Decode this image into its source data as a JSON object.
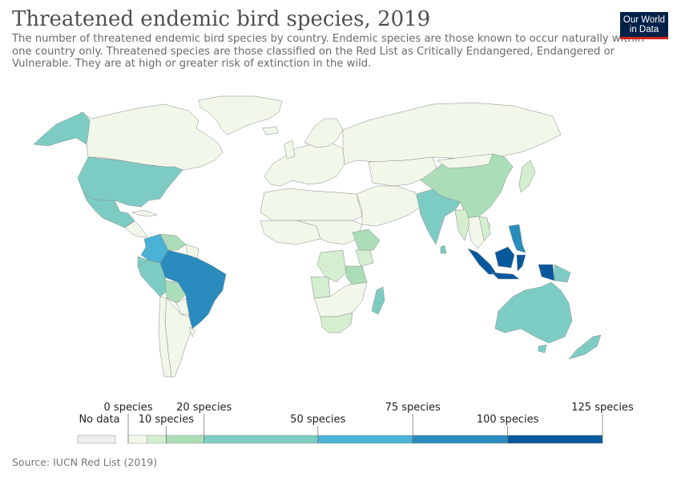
{
  "header": {
    "title": "Threatened endemic bird species, 2019",
    "subtitle": "The number of threatened endemic bird species by country. Endemic species are those known to occur naturally within one country only. Threatened species are those classified on the Red List as Critically Endangered, Endangered or Vulnerable. They are at high or greater risk of extinction in the wild."
  },
  "logo": {
    "line1": "Our World",
    "line2": "in Data",
    "bg": "#002147",
    "accent": "#ce261e"
  },
  "legend": {
    "no_data_label": "No data",
    "no_data_color": "#eeeeee",
    "bins": [
      {
        "from": 0,
        "to": 5,
        "color": "#f1f8ea"
      },
      {
        "from": 5,
        "to": 10,
        "color": "#d4eecf"
      },
      {
        "from": 10,
        "to": 20,
        "color": "#abdeb8"
      },
      {
        "from": 20,
        "to": 50,
        "color": "#7dccc4"
      },
      {
        "from": 50,
        "to": 75,
        "color": "#4ab2d4"
      },
      {
        "from": 75,
        "to": 100,
        "color": "#2a8cbe"
      },
      {
        "from": 100,
        "to": 125,
        "color": "#08589e"
      }
    ],
    "ticks": [
      {
        "value": 0,
        "label": "0 species",
        "row": "upper"
      },
      {
        "value": 10,
        "label": "10 species",
        "row": "lower"
      },
      {
        "value": 20,
        "label": "20 species",
        "row": "upper"
      },
      {
        "value": 50,
        "label": "50 species",
        "row": "lower"
      },
      {
        "value": 75,
        "label": "75 species",
        "row": "upper"
      },
      {
        "value": 100,
        "label": "100 species",
        "row": "lower"
      },
      {
        "value": 125,
        "label": "125 species",
        "row": "upper"
      }
    ]
  },
  "regions": [
    {
      "id": "greenland",
      "color": "#f1f8ea"
    },
    {
      "id": "canada",
      "color": "#f1f8ea"
    },
    {
      "id": "alaska",
      "color": "#7dccc4"
    },
    {
      "id": "united-states",
      "color": "#7dccc4"
    },
    {
      "id": "mexico",
      "color": "#7dccc4"
    },
    {
      "id": "central-america",
      "color": "#f1f8ea"
    },
    {
      "id": "cuba",
      "color": "#f1f8ea"
    },
    {
      "id": "colombia",
      "color": "#4ab2d4"
    },
    {
      "id": "venezuela",
      "color": "#abdeb8"
    },
    {
      "id": "guianas",
      "color": "#f1f8ea"
    },
    {
      "id": "ecuador",
      "color": "#7dccc4"
    },
    {
      "id": "peru",
      "color": "#7dccc4"
    },
    {
      "id": "bolivia",
      "color": "#abdeb8"
    },
    {
      "id": "brazil",
      "color": "#2a8cbe"
    },
    {
      "id": "paraguay",
      "color": "#f1f8ea"
    },
    {
      "id": "chile",
      "color": "#f1f8ea"
    },
    {
      "id": "argentina",
      "color": "#f1f8ea"
    },
    {
      "id": "uruguay",
      "color": "#f1f8ea"
    },
    {
      "id": "europe",
      "color": "#f1f8ea"
    },
    {
      "id": "scandinavia",
      "color": "#f1f8ea"
    },
    {
      "id": "united-kingdom",
      "color": "#f1f8ea"
    },
    {
      "id": "iceland",
      "color": "#f1f8ea"
    },
    {
      "id": "russia",
      "color": "#f1f8ea"
    },
    {
      "id": "north-africa",
      "color": "#f1f8ea"
    },
    {
      "id": "west-africa",
      "color": "#f1f8ea"
    },
    {
      "id": "central-africa",
      "color": "#f1f8ea"
    },
    {
      "id": "ethiopia",
      "color": "#abdeb8"
    },
    {
      "id": "kenya",
      "color": "#d4eecf"
    },
    {
      "id": "democratic-republic-of-congo",
      "color": "#d4eecf"
    },
    {
      "id": "tanzania",
      "color": "#abdeb8"
    },
    {
      "id": "angola",
      "color": "#d4eecf"
    },
    {
      "id": "southern-africa",
      "color": "#f1f8ea"
    },
    {
      "id": "south-africa",
      "color": "#d4eecf"
    },
    {
      "id": "madagascar",
      "color": "#7dccc4"
    },
    {
      "id": "middle-east",
      "color": "#f1f8ea"
    },
    {
      "id": "central-asia",
      "color": "#f1f8ea"
    },
    {
      "id": "india",
      "color": "#7dccc4"
    },
    {
      "id": "sri-lanka",
      "color": "#7dccc4"
    },
    {
      "id": "china",
      "color": "#abdeb8"
    },
    {
      "id": "mongolia",
      "color": "#f1f8ea"
    },
    {
      "id": "japan",
      "color": "#d4eecf"
    },
    {
      "id": "southeast-asia",
      "color": "#f1f8ea"
    },
    {
      "id": "myanmar",
      "color": "#d4eecf"
    },
    {
      "id": "vietnam",
      "color": "#d4eecf"
    },
    {
      "id": "philippines",
      "color": "#2a8cbe"
    },
    {
      "id": "sumatra",
      "color": "#08589e"
    },
    {
      "id": "java",
      "color": "#08589e"
    },
    {
      "id": "borneo",
      "color": "#08589e"
    },
    {
      "id": "sulawesi",
      "color": "#08589e"
    },
    {
      "id": "new-guinea-west",
      "color": "#08589e"
    },
    {
      "id": "papua-new-guinea",
      "color": "#7dccc4"
    },
    {
      "id": "australia",
      "color": "#7dccc4"
    },
    {
      "id": "tasmania",
      "color": "#7dccc4"
    },
    {
      "id": "new-zealand",
      "color": "#7dccc4"
    }
  ],
  "source": "Source: IUCN Red List (2019)"
}
